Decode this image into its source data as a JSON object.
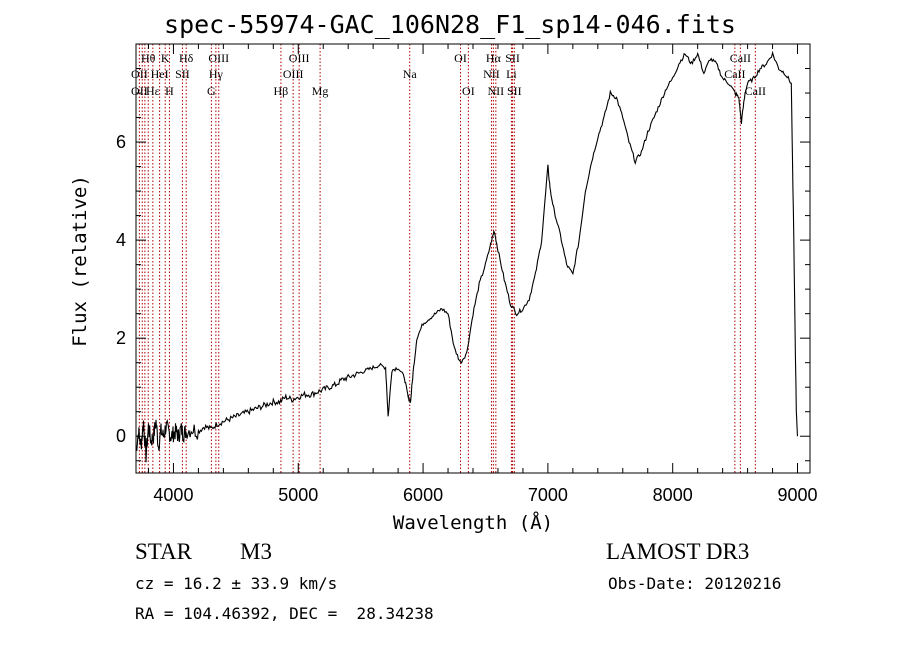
{
  "chart_data": {
    "type": "line",
    "title": "spec-55974-GAC_106N28_F1_sp14-046.fits",
    "xlabel": "Wavelength (Å)",
    "ylabel": "Flux (relative)",
    "xlim": [
      3700,
      9100
    ],
    "ylim": [
      -0.75,
      8.0
    ],
    "xticks": [
      4000,
      5000,
      6000,
      7000,
      8000,
      9000
    ],
    "yticks": [
      0,
      2,
      4,
      6
    ],
    "xtick_labels": [
      "4000",
      "5000",
      "6000",
      "7000",
      "8000",
      "9000"
    ],
    "ytick_labels": [
      "0",
      "2",
      "4",
      "6"
    ],
    "series": [
      {
        "name": "spectrum",
        "x": [
          3700,
          3720,
          3740,
          3760,
          3780,
          3800,
          3820,
          3840,
          3860,
          3880,
          3900,
          3920,
          3940,
          3960,
          3980,
          4000,
          4020,
          4040,
          4060,
          4080,
          4100,
          4150,
          4200,
          4250,
          4300,
          4350,
          4400,
          4450,
          4500,
          4550,
          4600,
          4650,
          4700,
          4750,
          4800,
          4850,
          4900,
          4950,
          5000,
          5050,
          5100,
          5150,
          5200,
          5250,
          5300,
          5350,
          5400,
          5450,
          5500,
          5550,
          5600,
          5650,
          5700,
          5720,
          5750,
          5800,
          5850,
          5880,
          5900,
          5920,
          5950,
          6000,
          6050,
          6100,
          6150,
          6200,
          6250,
          6300,
          6350,
          6400,
          6450,
          6500,
          6550,
          6570,
          6600,
          6650,
          6700,
          6750,
          6800,
          6850,
          6900,
          6950,
          7000,
          7020,
          7050,
          7100,
          7150,
          7200,
          7250,
          7300,
          7350,
          7400,
          7450,
          7500,
          7550,
          7600,
          7650,
          7700,
          7750,
          7800,
          7850,
          7900,
          7950,
          8000,
          8050,
          8100,
          8150,
          8200,
          8250,
          8300,
          8350,
          8400,
          8450,
          8500,
          8530,
          8550,
          8580,
          8600,
          8650,
          8700,
          8750,
          8800,
          8850,
          8900,
          8950,
          8970,
          8990,
          9000
        ],
        "y": [
          -0.3,
          0.1,
          -0.2,
          0.3,
          -0.4,
          0.2,
          -0.1,
          0.0,
          0.3,
          -0.2,
          0.1,
          0.0,
          0.2,
          0.1,
          0.0,
          0.05,
          0.1,
          0.0,
          0.15,
          0.05,
          0.1,
          0.15,
          0.1,
          0.2,
          0.15,
          0.25,
          0.3,
          0.35,
          0.4,
          0.45,
          0.5,
          0.55,
          0.6,
          0.65,
          0.7,
          0.7,
          0.8,
          0.75,
          0.8,
          0.85,
          0.85,
          0.9,
          0.95,
          1.0,
          1.05,
          1.15,
          1.2,
          1.25,
          1.3,
          1.35,
          1.4,
          1.45,
          1.4,
          0.4,
          1.35,
          1.4,
          1.2,
          0.8,
          0.7,
          1.3,
          2.0,
          2.3,
          2.4,
          2.5,
          2.6,
          2.5,
          1.8,
          1.5,
          1.7,
          2.5,
          3.1,
          3.5,
          4.0,
          4.2,
          3.8,
          3.2,
          2.7,
          2.5,
          2.6,
          2.8,
          3.3,
          4.0,
          5.5,
          5.0,
          4.6,
          4.1,
          3.5,
          3.3,
          4.0,
          5.0,
          5.6,
          6.1,
          6.5,
          7.0,
          6.9,
          6.5,
          6.0,
          5.6,
          5.8,
          6.2,
          6.5,
          6.8,
          7.1,
          7.3,
          7.6,
          7.8,
          7.6,
          7.8,
          7.4,
          7.7,
          7.6,
          7.3,
          7.2,
          7.0,
          6.9,
          6.4,
          7.0,
          7.2,
          7.3,
          7.5,
          7.6,
          7.8,
          7.5,
          7.4,
          7.2,
          4.0,
          0.5,
          0.0
        ]
      }
    ],
    "line_labels": [
      {
        "text": "Hθ",
        "row": 1,
        "wavelength": 3798
      },
      {
        "text": "K",
        "row": 1,
        "wavelength": 3934
      },
      {
        "text": "Hδ",
        "row": 1,
        "wavelength": 4102
      },
      {
        "text": "OIII",
        "row": 1,
        "wavelength": 4363
      },
      {
        "text": "OIII",
        "row": 1,
        "wavelength": 5007
      },
      {
        "text": "OI",
        "row": 1,
        "wavelength": 6300
      },
      {
        "text": "Hα",
        "row": 1,
        "wavelength": 6563
      },
      {
        "text": "SII",
        "row": 1,
        "wavelength": 6717
      },
      {
        "text": "CaII",
        "row": 1,
        "wavelength": 8542
      },
      {
        "text": "OII",
        "row": 2,
        "wavelength": 3727
      },
      {
        "text": "HeI",
        "row": 2,
        "wavelength": 3889
      },
      {
        "text": "SII",
        "row": 2,
        "wavelength": 4072
      },
      {
        "text": "Hγ",
        "row": 2,
        "wavelength": 4340
      },
      {
        "text": "OIII",
        "row": 2,
        "wavelength": 4959
      },
      {
        "text": "Na",
        "row": 2,
        "wavelength": 5893
      },
      {
        "text": "NII",
        "row": 2,
        "wavelength": 6548
      },
      {
        "text": "Li",
        "row": 2,
        "wavelength": 6708
      },
      {
        "text": "CaII",
        "row": 2,
        "wavelength": 8498
      },
      {
        "text": "OII",
        "row": 3,
        "wavelength": 3727
      },
      {
        "text": "Hε",
        "row": 3,
        "wavelength": 3835
      },
      {
        "text": "H",
        "row": 3,
        "wavelength": 3968
      },
      {
        "text": "G",
        "row": 3,
        "wavelength": 4304
      },
      {
        "text": "Hβ",
        "row": 3,
        "wavelength": 4861
      },
      {
        "text": "Mg",
        "row": 3,
        "wavelength": 5175
      },
      {
        "text": "OI",
        "row": 3,
        "wavelength": 6363
      },
      {
        "text": "NII",
        "row": 3,
        "wavelength": 6583
      },
      {
        "text": "SII",
        "row": 3,
        "wavelength": 6731
      },
      {
        "text": "CaII",
        "row": 3,
        "wavelength": 8662
      }
    ],
    "line_markers": [
      3727,
      3750,
      3771,
      3798,
      3835,
      3889,
      3934,
      3968,
      4072,
      4102,
      4304,
      4340,
      4363,
      4861,
      4959,
      5007,
      5175,
      5893,
      6300,
      6363,
      6548,
      6563,
      6583,
      6708,
      6717,
      6731,
      8498,
      8542,
      8662
    ]
  },
  "info": {
    "object_class": "STAR",
    "subclass": "M3",
    "survey": "LAMOST DR3",
    "redshift": "cz = 16.2 ± 33.9 km/s",
    "obs_date": "Obs-Date: 20120216",
    "coords": "RA = 104.46392, DEC =  28.34238"
  }
}
